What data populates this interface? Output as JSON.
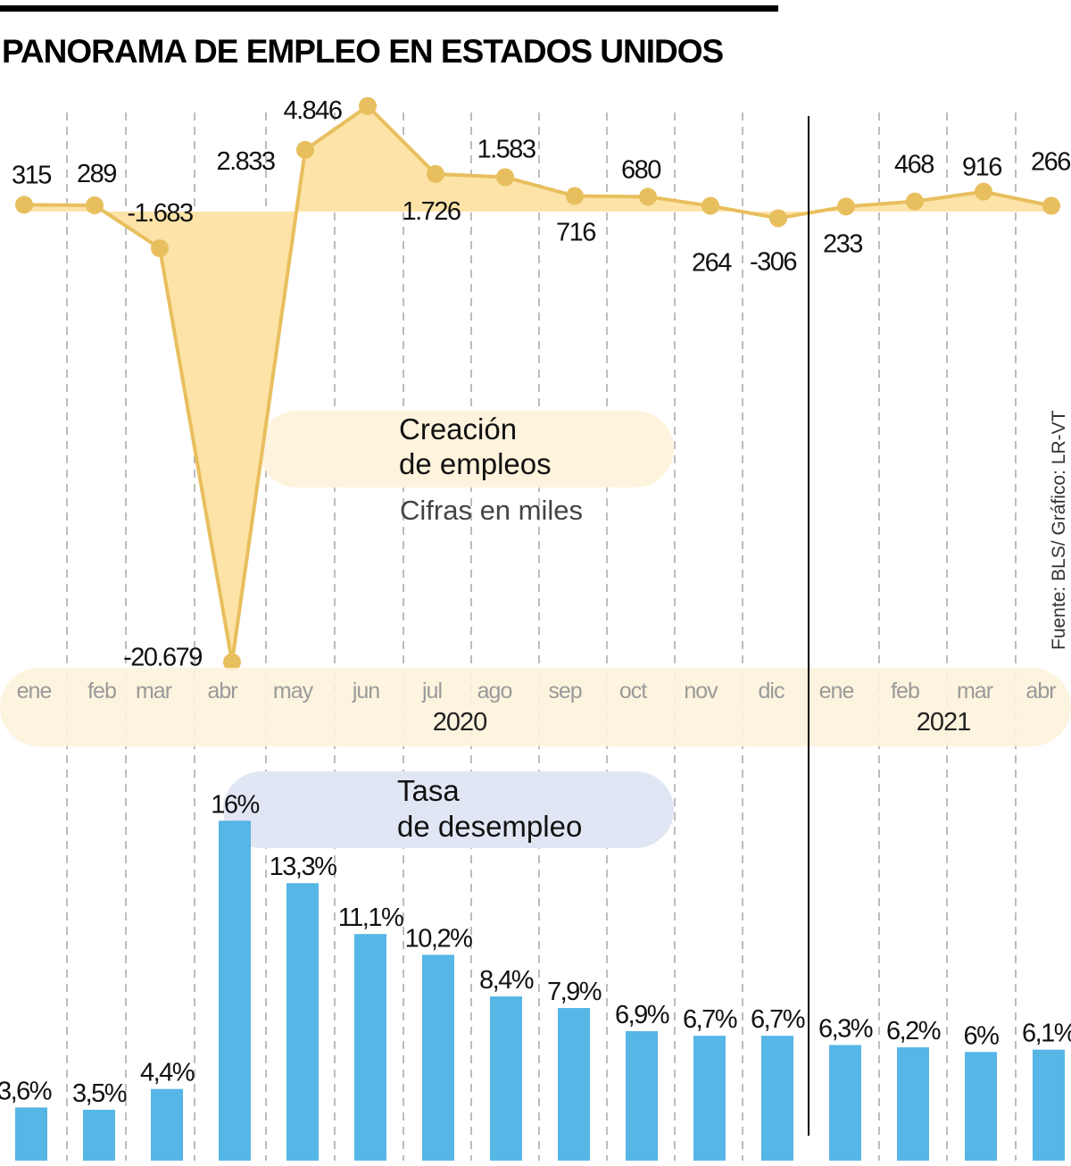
{
  "title": "PANORAMA DE EMPLEO EN ESTADOS UNIDOS",
  "source": "Fuente: BLS/ Gráfico: LR-VT",
  "colors": {
    "line": "#e8bf5e",
    "area": "#fde3a7",
    "band": "#fdf3dc",
    "bars": "#56b6e6",
    "legend2": "#e0e6f4"
  },
  "months": [
    "ene",
    "feb",
    "mar",
    "abr",
    "may",
    "jun",
    "jul",
    "ago",
    "sep",
    "oct",
    "nov",
    "dic",
    "ene",
    "feb",
    "mar",
    "abr"
  ],
  "years": [
    "2020",
    "2021"
  ],
  "chart_data": [
    {
      "type": "line",
      "title_lines": [
        "Creación",
        "de empleos"
      ],
      "subtitle": "Cifras en miles",
      "categories": [
        "ene 2020",
        "feb 2020",
        "mar 2020",
        "abr 2020",
        "may 2020",
        "jun 2020",
        "jul 2020",
        "ago 2020",
        "sep 2020",
        "oct 2020",
        "nov 2020",
        "dic 2020",
        "ene 2021",
        "feb 2021",
        "mar 2021",
        "abr 2021"
      ],
      "values": [
        315,
        289,
        -1683,
        -20679,
        2833,
        4846,
        1726,
        1583,
        716,
        680,
        264,
        -306,
        233,
        468,
        916,
        266
      ],
      "labels": [
        "315",
        "289",
        "-1.683",
        "-20.679",
        "2.833",
        "4.846",
        "1.726",
        "1.583",
        "716",
        "680",
        "264",
        "-306",
        "233",
        "468",
        "916",
        "266"
      ],
      "area_fill": true,
      "grid": "vertical dashed"
    },
    {
      "type": "bar",
      "title_lines": [
        "Tasa",
        "de desempleo"
      ],
      "categories": [
        "ene 2020",
        "feb 2020",
        "mar 2020",
        "abr 2020",
        "may 2020",
        "jun 2020",
        "jul 2020",
        "ago 2020",
        "sep 2020",
        "oct 2020",
        "nov 2020",
        "dic 2020",
        "ene 2021",
        "feb 2021",
        "mar 2021",
        "abr 2021"
      ],
      "values": [
        3.6,
        3.5,
        4.4,
        16,
        13.3,
        11.1,
        10.2,
        8.4,
        7.9,
        6.9,
        6.7,
        6.7,
        6.3,
        6.2,
        6,
        6.1
      ],
      "labels": [
        "3,6%",
        "3,5%",
        "4,4%",
        "16%",
        "13,3%",
        "11,1%",
        "10,2%",
        "8,4%",
        "7,9%",
        "6,9%",
        "6,7%",
        "6,7%",
        "6,3%",
        "6,2%",
        "6%",
        "6,1%"
      ]
    }
  ]
}
